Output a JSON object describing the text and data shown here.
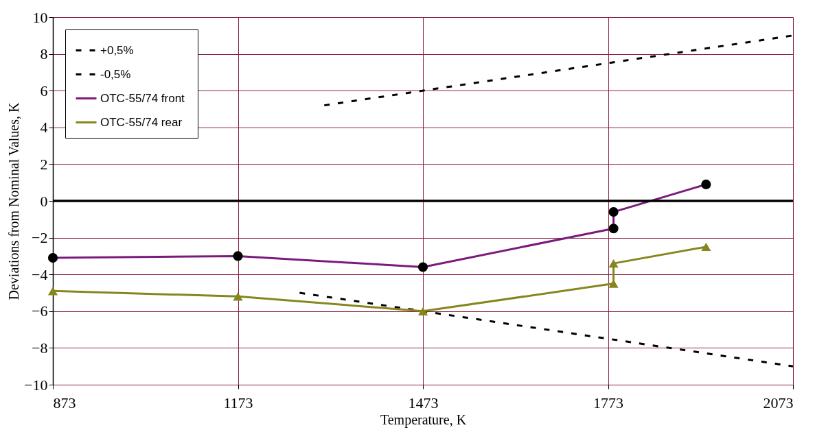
{
  "chart_data": {
    "type": "line",
    "xlabel": "Temperature, K",
    "ylabel": "Deviations from Nominal Values, K",
    "xlim": [
      873,
      2073
    ],
    "xticks": [
      873,
      1173,
      1473,
      1773,
      2073
    ],
    "ylim": [
      -10,
      10
    ],
    "yticks": [
      -10,
      -8,
      -6,
      -4,
      -2,
      0,
      2,
      4,
      6,
      8,
      10
    ],
    "grid": true,
    "legend": "top left",
    "ref_lines": [
      {
        "axis": "y",
        "value": 0,
        "color": "#000000"
      }
    ],
    "series": [
      {
        "name": "+0,5%",
        "color": "#000000",
        "line_style": "dashed",
        "marker": "none",
        "x": [
          1313,
          2073
        ],
        "values": [
          5.2,
          9
        ]
      },
      {
        "name": "-0,5%",
        "color": "#000000",
        "line_style": "dashed",
        "marker": "none",
        "x": [
          1273,
          2073
        ],
        "values": [
          -5,
          -9
        ]
      },
      {
        "name": "OTC-55/74  front",
        "color": "#7a1a7a",
        "line_style": "solid",
        "marker": "circle",
        "x": [
          873,
          1173,
          1473,
          1782,
          1782,
          1932
        ],
        "values": [
          -3.1,
          -3,
          -3.6,
          -1.5,
          -0.6,
          0.9
        ]
      },
      {
        "name": "OTC-55/74  rear",
        "color": "#86861e",
        "line_style": "solid",
        "marker": "triangle",
        "x": [
          873,
          1173,
          1473,
          1782,
          1782,
          1932
        ],
        "values": [
          -4.9,
          -5.2,
          -6,
          -4.5,
          -3.4,
          -2.5
        ]
      }
    ]
  }
}
